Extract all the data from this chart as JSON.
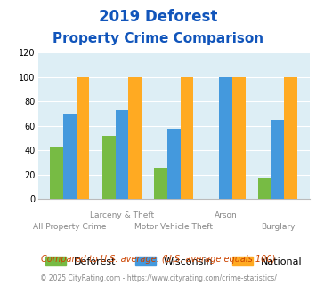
{
  "title_line1": "2019 Deforest",
  "title_line2": "Property Crime Comparison",
  "deforest": [
    43,
    52,
    26,
    0,
    17
  ],
  "wisconsin": [
    70,
    73,
    58,
    100,
    65
  ],
  "national": [
    100,
    100,
    100,
    100,
    100
  ],
  "top_labels": [
    "",
    "Larceny & Theft",
    "",
    "Arson",
    ""
  ],
  "bottom_labels": [
    "All Property Crime",
    "",
    "Motor Vehicle Theft",
    "",
    "Burglary"
  ],
  "color_deforest": "#77bb44",
  "color_wisconsin": "#4499dd",
  "color_national": "#ffaa22",
  "title_color": "#1155bb",
  "bg_color": "#ddeef5",
  "ylim": [
    0,
    120
  ],
  "yticks": [
    0,
    20,
    40,
    60,
    80,
    100,
    120
  ],
  "legend_labels": [
    "Deforest",
    "Wisconsin",
    "National"
  ],
  "footer_text1": "Compared to U.S. average. (U.S. average equals 100)",
  "footer_text2": "© 2025 CityRating.com - https://www.cityrating.com/crime-statistics/",
  "footer_color1": "#cc4400",
  "footer_color2": "#888888"
}
